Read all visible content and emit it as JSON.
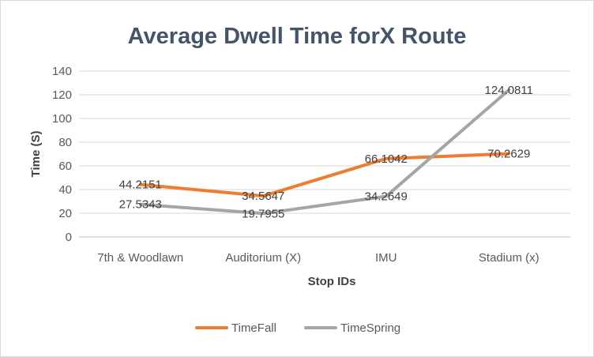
{
  "chart_data": {
    "type": "line",
    "title": "Average Dwell Time forX Route",
    "xlabel": "Stop IDs",
    "ylabel": "Time (S)",
    "categories": [
      "7th & Woodlawn",
      "Auditorium (X)",
      "IMU",
      "Stadium (x)"
    ],
    "ylim": [
      0,
      140
    ],
    "yticks": [
      0,
      20,
      40,
      60,
      80,
      100,
      120,
      140
    ],
    "grid": true,
    "legend_position": "bottom",
    "series": [
      {
        "name": "TimeFall",
        "color": "#ed7d31",
        "values": [
          44.2151,
          34.5647,
          66.1042,
          70.2629
        ],
        "labels": [
          "44.2151",
          "34.5647",
          "66.1042",
          "70.2629"
        ]
      },
      {
        "name": "TimeSpring",
        "color": "#a5a5a5",
        "values": [
          27.5343,
          19.7955,
          34.2649,
          124.0811
        ],
        "labels": [
          "27.5343",
          "19.7955",
          "34.2649",
          "124.0811"
        ]
      }
    ]
  }
}
